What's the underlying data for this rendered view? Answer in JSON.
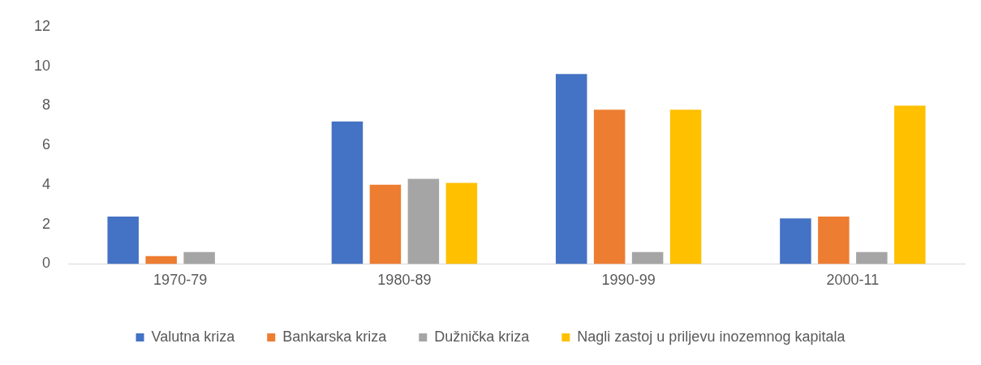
{
  "chart_data": {
    "type": "bar",
    "categories": [
      "1970-79",
      "1980-89",
      "1990-99",
      "2000-11"
    ],
    "series": [
      {
        "name": "Valutna kriza",
        "color": "#4472c4",
        "values": [
          2.4,
          7.2,
          9.6,
          2.3
        ]
      },
      {
        "name": "Bankarska kriza",
        "color": "#ed7d31",
        "values": [
          0.4,
          4.0,
          7.8,
          2.4
        ]
      },
      {
        "name": "Dužnička kriza",
        "color": "#a5a5a5",
        "values": [
          0.6,
          4.3,
          0.6,
          0.6
        ]
      },
      {
        "name": "Nagli zastoj u priljevu inozemnog kapitala",
        "color": "#ffc000",
        "values": [
          null,
          4.1,
          7.8,
          8.0
        ]
      }
    ],
    "ylim": [
      0,
      12
    ],
    "yticks": [
      0,
      2,
      4,
      6,
      8,
      10,
      12
    ],
    "grid": false,
    "legend": "bottom"
  }
}
